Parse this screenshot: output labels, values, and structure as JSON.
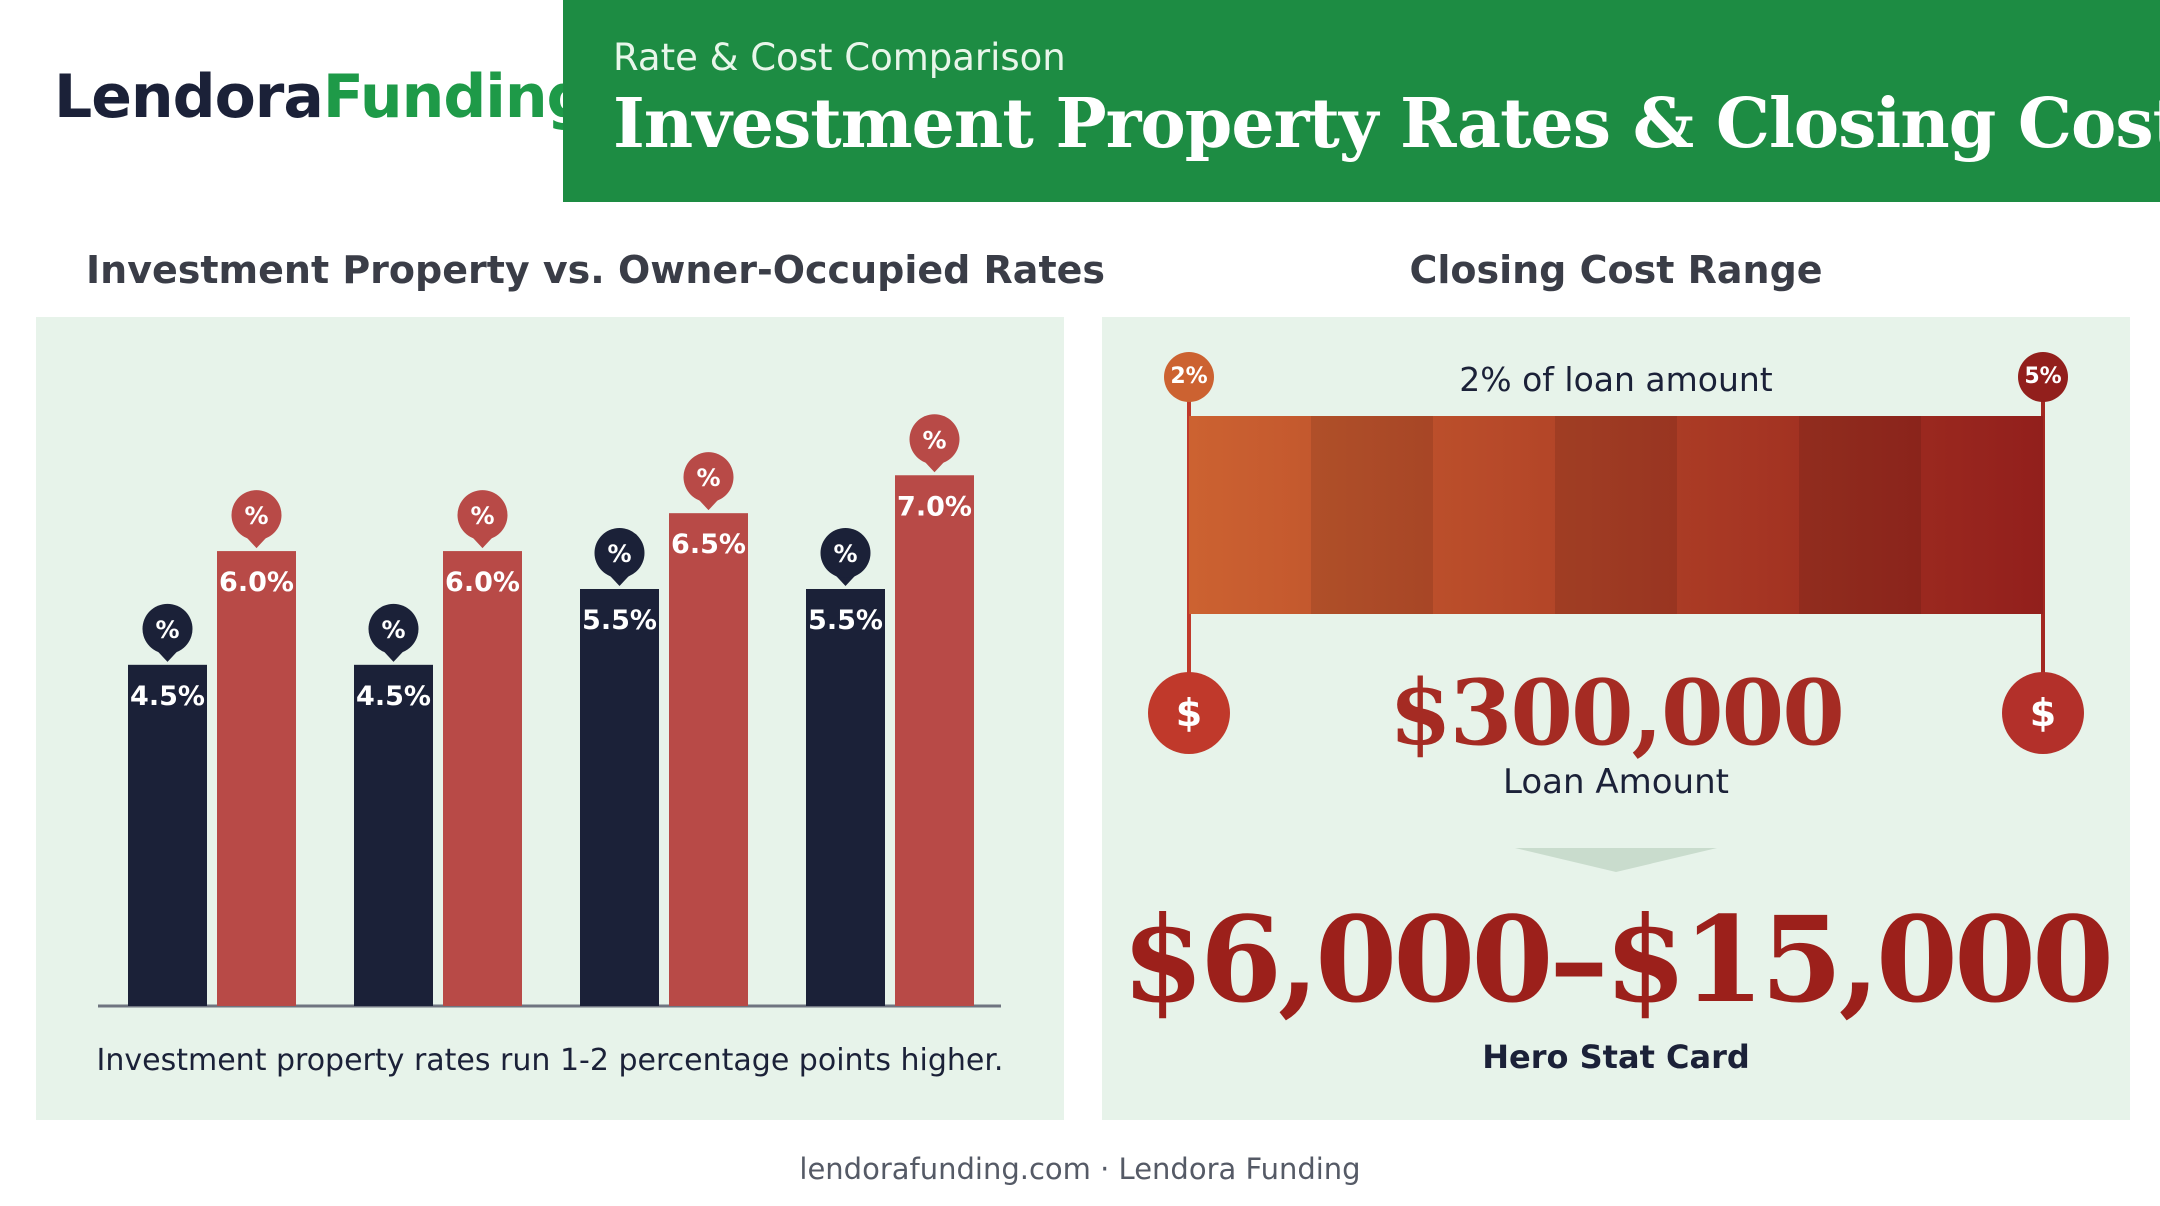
{
  "brand": {
    "name_part1": "Lendora",
    "name_part2": "Funding"
  },
  "header": {
    "kicker": "Rate & Cost Comparison",
    "title": "Investment Property Rates & Closing Costs"
  },
  "colors": {
    "green": "#1d8c43",
    "navy": "#1b2138",
    "red": "#b84a47",
    "dark_red": "#9c201b",
    "panel": "#e7f3ea"
  },
  "rates_section": {
    "title": "Investment Property vs. Owner-Occupied Rates",
    "caption": "Investment property rates run 1-2 percentage points higher.",
    "marker_icon": "percent-pin-icon",
    "marker_symbol": "%"
  },
  "chart_data": {
    "type": "bar",
    "categories": [
      "",
      "",
      "",
      ""
    ],
    "series": [
      {
        "values": [
          4.5,
          4.5,
          5.5,
          5.5
        ],
        "labels": [
          "4.5%",
          "4.5%",
          "5.5%",
          "5.5%"
        ],
        "color": "#1b2138"
      },
      {
        "values": [
          6.0,
          6.0,
          6.5,
          7.0
        ],
        "labels": [
          "6.0%",
          "6.0%",
          "6.5%",
          "7.0%"
        ],
        "color": "#b84a47"
      }
    ],
    "ylim": [
      0,
      8.85
    ],
    "grid": false,
    "xlabel": "",
    "ylabel": ""
  },
  "closing_section": {
    "title": "Closing Cost Range",
    "range_label": "2% of loan amount",
    "min_pct": "2%",
    "max_pct": "5%",
    "dollar_symbol": "$",
    "dollar_icon": "dollar-pin-icon",
    "gradient_from": "#cc6231",
    "gradient_to": "#921f1c",
    "loan_amount": "$300,000",
    "loan_label": "Loan Amount",
    "hero_value": "$6,000–$15,000",
    "hero_label": "Hero Stat Card"
  },
  "footer": {
    "text": "lendorafunding.com · Lendora Funding"
  }
}
